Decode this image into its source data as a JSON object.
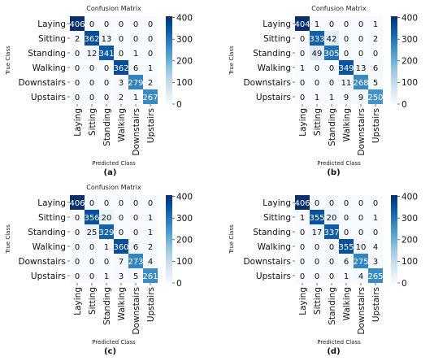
{
  "chart_data": [
    {
      "type": "heatmap",
      "panel_label": "(a)",
      "title": "Confusion Matrix",
      "xlabel": "Predicted Class",
      "ylabel": "True Class",
      "classes": [
        "Laying",
        "Sitting",
        "Standing",
        "Walking",
        "Downstairs",
        "Upstairs"
      ],
      "matrix": [
        [
          406,
          0,
          0,
          0,
          0,
          0
        ],
        [
          2,
          362,
          13,
          0,
          0,
          0
        ],
        [
          0,
          12,
          341,
          0,
          1,
          0
        ],
        [
          0,
          0,
          0,
          362,
          6,
          1
        ],
        [
          0,
          0,
          0,
          3,
          279,
          2
        ],
        [
          0,
          0,
          0,
          2,
          1,
          267
        ]
      ],
      "colorbar_ticks": [
        0,
        100,
        200,
        300,
        400
      ],
      "colorbar_range": [
        0,
        406
      ],
      "colormap": "Blues"
    },
    {
      "type": "heatmap",
      "panel_label": "(b)",
      "title": "Confusion Matrix",
      "xlabel": "Predicted Class",
      "ylabel": "True Class",
      "classes": [
        "Laying",
        "Sitting",
        "Standing",
        "Walking",
        "Downstairs",
        "Upstairs"
      ],
      "matrix": [
        [
          404,
          1,
          0,
          0,
          0,
          1
        ],
        [
          0,
          333,
          42,
          0,
          0,
          2
        ],
        [
          0,
          49,
          305,
          0,
          0,
          0
        ],
        [
          1,
          0,
          0,
          349,
          13,
          6
        ],
        [
          0,
          0,
          0,
          11,
          268,
          5
        ],
        [
          0,
          1,
          1,
          9,
          9,
          250
        ]
      ],
      "colorbar_ticks": [
        0,
        100,
        200,
        300,
        400
      ],
      "colorbar_range": [
        0,
        406
      ],
      "colormap": "Blues"
    },
    {
      "type": "heatmap",
      "panel_label": "(c)",
      "title": "Confusion Matrix",
      "xlabel": "Predicted Class",
      "ylabel": "True Class",
      "classes": [
        "Laying",
        "Sitting",
        "Standing",
        "Walking",
        "Downstairs",
        "Upstairs"
      ],
      "matrix": [
        [
          406,
          0,
          0,
          0,
          0,
          0
        ],
        [
          0,
          356,
          20,
          0,
          0,
          1
        ],
        [
          0,
          25,
          329,
          0,
          0,
          1
        ],
        [
          0,
          0,
          1,
          360,
          6,
          2
        ],
        [
          0,
          0,
          0,
          7,
          273,
          4
        ],
        [
          0,
          0,
          1,
          3,
          5,
          261
        ]
      ],
      "colorbar_ticks": [
        0,
        100,
        200,
        300,
        400
      ],
      "colorbar_range": [
        0,
        406
      ],
      "colormap": "Blues"
    },
    {
      "type": "heatmap",
      "panel_label": "(d)",
      "title": "",
      "xlabel": "Predicted Class",
      "ylabel": "True Class",
      "classes": [
        "Laying",
        "Sitting",
        "Standing",
        "Walking",
        "Downstairs",
        "Upstairs"
      ],
      "matrix": [
        [
          406,
          0,
          0,
          0,
          0,
          0
        ],
        [
          1,
          355,
          20,
          0,
          0,
          1
        ],
        [
          0,
          17,
          337,
          0,
          0,
          0
        ],
        [
          0,
          0,
          0,
          355,
          10,
          4
        ],
        [
          0,
          0,
          0,
          6,
          275,
          3
        ],
        [
          0,
          0,
          0,
          1,
          4,
          265
        ]
      ],
      "colorbar_ticks": [
        0,
        100,
        200,
        300,
        400
      ],
      "colorbar_range": [
        0,
        406
      ],
      "colormap": "Blues"
    }
  ]
}
